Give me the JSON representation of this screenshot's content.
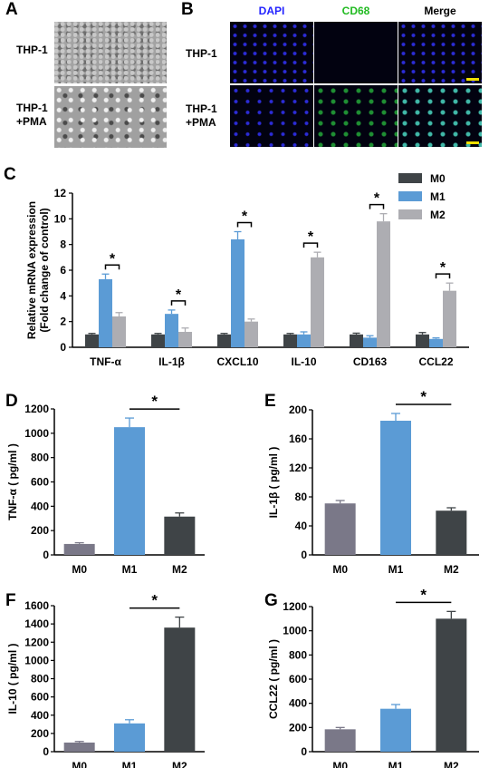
{
  "panels": {
    "A": {
      "letter": "A",
      "rows": [
        "THP-1",
        "THP-1\n+PMA"
      ]
    },
    "B": {
      "letter": "B",
      "headers": [
        "DAPI",
        "CD68",
        "Merge"
      ],
      "header_colors": [
        "#2222ff",
        "#22bb22",
        "#000000"
      ],
      "rows": [
        "THP-1",
        "THP-1\n+PMA"
      ]
    }
  },
  "colors": {
    "M0_dark": "#3f4447",
    "M1_blue": "#5b9bd5",
    "M2_grey": "#adadb2",
    "M0_purple_grey": "#7a7888"
  },
  "chart_data": [
    {
      "id": "C",
      "letter": "C",
      "type": "bar",
      "categories": [
        "TNF-α",
        "IL-1β",
        "CXCL10",
        "IL-10",
        "CD163",
        "CCL22"
      ],
      "series": [
        {
          "name": "M0",
          "values": [
            1.0,
            1.0,
            1.0,
            1.0,
            1.0,
            1.0
          ],
          "errors": [
            0.08,
            0.08,
            0.08,
            0.08,
            0.1,
            0.15
          ],
          "color": "#3f4447"
        },
        {
          "name": "M1",
          "values": [
            5.3,
            2.6,
            8.4,
            1.0,
            0.75,
            0.65
          ],
          "errors": [
            0.4,
            0.3,
            0.6,
            0.2,
            0.15,
            0.08
          ],
          "color": "#5b9bd5"
        },
        {
          "name": "M2",
          "values": [
            2.4,
            1.2,
            2.0,
            7.0,
            9.8,
            4.4
          ],
          "errors": [
            0.3,
            0.3,
            0.2,
            0.4,
            0.6,
            0.6
          ],
          "color": "#adadb2"
        }
      ],
      "significance": [
        {
          "category": "TNF-α",
          "pair": [
            "M1",
            "M2"
          ],
          "label": "*"
        },
        {
          "category": "IL-1β",
          "pair": [
            "M1",
            "M2"
          ],
          "label": "*"
        },
        {
          "category": "CXCL10",
          "pair": [
            "M1",
            "M2"
          ],
          "label": "*"
        },
        {
          "category": "IL-10",
          "pair": [
            "M1",
            "M2"
          ],
          "label": "*"
        },
        {
          "category": "CD163",
          "pair": [
            "M1",
            "M2"
          ],
          "label": "*"
        },
        {
          "category": "CCL22",
          "pair": [
            "M1",
            "M2"
          ],
          "label": "*"
        }
      ],
      "ylabel": "Relative  mRNA  expression\n(Fold change of control)",
      "ylim": [
        0,
        12
      ],
      "yticks": [
        0,
        2,
        4,
        6,
        8,
        10,
        12
      ],
      "legend_position": "top-right"
    },
    {
      "id": "D",
      "letter": "D",
      "type": "bar",
      "categories": [
        "M0",
        "M1",
        "M2"
      ],
      "values": [
        90,
        1050,
        315
      ],
      "errors": [
        10,
        75,
        30
      ],
      "colors": [
        "#7a7888",
        "#5b9bd5",
        "#3f4447"
      ],
      "significance": {
        "pair": [
          "M1",
          "M2"
        ],
        "label": "*"
      },
      "ylabel": "TNF-α ( pg/ml )",
      "ylim": [
        0,
        1200
      ],
      "yticks": [
        0,
        200,
        400,
        600,
        800,
        1000,
        1200
      ]
    },
    {
      "id": "E",
      "letter": "E",
      "type": "bar",
      "categories": [
        "M0",
        "M1",
        "M2"
      ],
      "values": [
        71,
        185,
        61
      ],
      "errors": [
        4,
        10,
        4
      ],
      "colors": [
        "#7a7888",
        "#5b9bd5",
        "#3f4447"
      ],
      "significance": {
        "pair": [
          "M1",
          "M2"
        ],
        "label": "*"
      },
      "ylabel": "IL-1β ( pg/ml )",
      "ylim": [
        0,
        200
      ],
      "yticks": [
        0,
        40,
        80,
        120,
        160,
        200
      ]
    },
    {
      "id": "F",
      "letter": "F",
      "type": "bar",
      "categories": [
        "M0",
        "M1",
        "M2"
      ],
      "values": [
        100,
        310,
        1360
      ],
      "errors": [
        12,
        40,
        115
      ],
      "colors": [
        "#7a7888",
        "#5b9bd5",
        "#3f4447"
      ],
      "significance": {
        "pair": [
          "M1",
          "M2"
        ],
        "label": "*"
      },
      "ylabel": "IL-10 ( pg/ml )",
      "ylim": [
        0,
        1600
      ],
      "yticks": [
        0,
        200,
        400,
        600,
        800,
        1000,
        1200,
        1400,
        1600
      ]
    },
    {
      "id": "G",
      "letter": "G",
      "type": "bar",
      "categories": [
        "M0",
        "M1",
        "M2"
      ],
      "values": [
        185,
        355,
        1100
      ],
      "errors": [
        15,
        35,
        60
      ],
      "colors": [
        "#7a7888",
        "#5b9bd5",
        "#3f4447"
      ],
      "significance": {
        "pair": [
          "M1",
          "M2"
        ],
        "label": "*"
      },
      "ylabel": "CCL22 ( pg/ml )",
      "ylim": [
        0,
        1200
      ],
      "yticks": [
        0,
        200,
        400,
        600,
        800,
        1000,
        1200
      ]
    }
  ]
}
